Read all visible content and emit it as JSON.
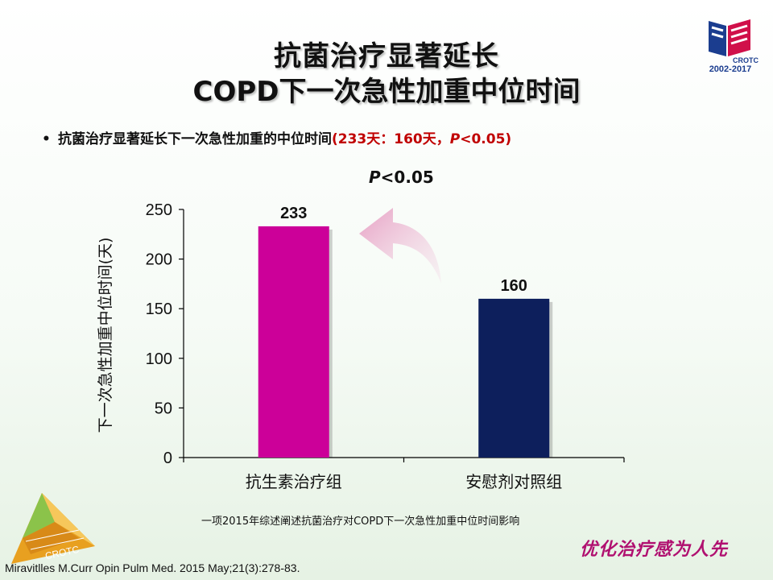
{
  "slide": {
    "title_line1": "抗菌治疗显著延长",
    "title_line2": "COPD下一次急性加重中位时间",
    "bullet_symbol": "•",
    "bullet_text": "抗菌治疗显著延长下一次急性加重的中位时间",
    "bullet_paren_start": "(233天：160天，",
    "bullet_paren_p": "P",
    "bullet_paren_end": "<0.05)",
    "footnote": "一项2015年综述阐述抗菌治疗对COPD下一次急性加重中位时间影响",
    "citation": "Miravitlles M.Curr Opin Pulm Med. 2015 May;21(3):278-83.",
    "slogan": "优化治疗感为人先",
    "logo_top_right": "CROTC",
    "logo_years": "2002-2017",
    "logo_bottom_left": "CROTC"
  },
  "chart_data": {
    "type": "bar",
    "categories": [
      "抗生素治疗组",
      "安慰剂对照组"
    ],
    "values": [
      233,
      160
    ],
    "data_labels": [
      "233",
      "160"
    ],
    "colors": [
      "#cc0099",
      "#0d1f5c"
    ],
    "ylabel": "下一次急性加重中位时间(天)",
    "ylim": [
      0,
      250
    ],
    "yticks": [
      0,
      50,
      100,
      150,
      200,
      250
    ],
    "ytick_labels": [
      "0",
      "50",
      "100",
      "150",
      "200",
      "250"
    ],
    "annotation_p": "P",
    "annotation_rest": "<0.05",
    "grid": false
  }
}
